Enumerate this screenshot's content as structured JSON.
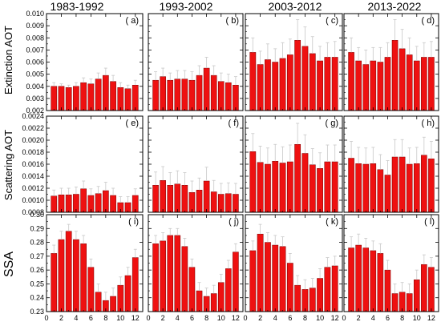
{
  "chart_data": {
    "type": "bar",
    "columns": [
      "1983-1992",
      "1993-2002",
      "2003-2012",
      "2013-2022"
    ],
    "rows": [
      {
        "ylabel": "Extinction AOT",
        "ylim": [
          0.002,
          0.01
        ],
        "yticks": [
          "0.002",
          "0.003",
          "0.004",
          "0.005",
          "0.006",
          "0.007",
          "0.008",
          "0.009",
          "0.010"
        ],
        "panels": [
          {
            "label": "( a)",
            "values": [
              0.004,
              0.004,
              0.0039,
              0.004,
              0.0043,
              0.0042,
              0.0046,
              0.0049,
              0.0044,
              0.0039,
              0.0038,
              0.0041
            ],
            "error": [
              0.0003,
              0.0002,
              0.0002,
              0.0003,
              0.0004,
              0.0004,
              0.0005,
              0.0006,
              0.0005,
              0.0004,
              0.0003,
              0.0004
            ]
          },
          {
            "label": "( b)",
            "values": [
              0.0045,
              0.0048,
              0.0045,
              0.0046,
              0.0046,
              0.0045,
              0.0049,
              0.0055,
              0.0049,
              0.0044,
              0.0043,
              0.0041
            ],
            "error": [
              0.0007,
              0.0007,
              0.0006,
              0.0007,
              0.0007,
              0.0007,
              0.0008,
              0.0009,
              0.0008,
              0.0007,
              0.0007,
              0.0007
            ]
          },
          {
            "label": "( c)",
            "values": [
              0.0068,
              0.0058,
              0.0062,
              0.006,
              0.0063,
              0.0066,
              0.0078,
              0.0073,
              0.0067,
              0.0061,
              0.0064,
              0.0064
            ],
            "error": [
              0.0012,
              0.0011,
              0.0013,
              0.0011,
              0.0013,
              0.0013,
              0.0017,
              0.0016,
              0.0014,
              0.0012,
              0.0012,
              0.0013
            ]
          },
          {
            "label": "( d)",
            "values": [
              0.0068,
              0.0061,
              0.0058,
              0.0061,
              0.006,
              0.0064,
              0.0078,
              0.0071,
              0.0066,
              0.0061,
              0.0064,
              0.0064
            ],
            "error": [
              0.0012,
              0.0011,
              0.0012,
              0.0011,
              0.0012,
              0.0012,
              0.0017,
              0.0016,
              0.0014,
              0.0012,
              0.0012,
              0.0013
            ]
          }
        ]
      },
      {
        "ylabel": "Scattering AOT",
        "ylim": [
          0.0008,
          0.0024
        ],
        "yticks": [
          "0.0008",
          "0.0010",
          "0.0012",
          "0.0014",
          "0.0016",
          "0.0018",
          "0.0020",
          "0.0022",
          "0.0024"
        ],
        "panels": [
          {
            "label": "( e)",
            "values": [
              0.00107,
              0.00109,
              0.00109,
              0.0011,
              0.00119,
              0.00108,
              0.00111,
              0.00116,
              0.00108,
              0.00096,
              0.00096,
              0.00108
            ],
            "error": [
              0.0001,
              0.00011,
              0.00011,
              0.00012,
              0.00013,
              0.00011,
              0.00012,
              0.00014,
              0.00012,
              0.0001,
              0.0001,
              0.00011
            ]
          },
          {
            "label": "( f)",
            "values": [
              0.00125,
              0.00133,
              0.00125,
              0.00127,
              0.00125,
              0.00113,
              0.00117,
              0.00132,
              0.00114,
              0.0011,
              0.00111,
              0.0011
            ],
            "error": [
              0.00022,
              0.00023,
              0.00021,
              0.00022,
              0.00021,
              0.00019,
              0.0002,
              0.00023,
              0.00019,
              0.00018,
              0.00018,
              0.00018
            ]
          },
          {
            "label": "( g)",
            "values": [
              0.00181,
              0.00163,
              0.0016,
              0.00165,
              0.00162,
              0.00164,
              0.00193,
              0.00178,
              0.00159,
              0.00153,
              0.00164,
              0.00164
            ],
            "error": [
              0.0003,
              0.00027,
              0.00027,
              0.00028,
              0.00027,
              0.00028,
              0.00035,
              0.00031,
              0.00027,
              0.00026,
              0.00028,
              0.00028
            ]
          },
          {
            "label": "( h)",
            "values": [
              0.0017,
              0.00161,
              0.0016,
              0.00161,
              0.00151,
              0.00142,
              0.00172,
              0.00172,
              0.0016,
              0.00161,
              0.00175,
              0.00169
            ],
            "error": [
              0.00028,
              0.00027,
              0.00027,
              0.00027,
              0.00025,
              0.00024,
              0.00029,
              0.00029,
              0.00027,
              0.00027,
              0.0003,
              0.00029
            ]
          }
        ]
      },
      {
        "ylabel": "SSA",
        "ylim": [
          0.23,
          0.3
        ],
        "yticks": [
          "0.23",
          "0.24",
          "0.25",
          "0.26",
          "0.27",
          "0.28",
          "0.29",
          "0.30"
        ],
        "panels": [
          {
            "label": "( i)",
            "values": [
              0.272,
              0.282,
              0.288,
              0.282,
              0.279,
              0.262,
              0.244,
              0.238,
              0.241,
              0.249,
              0.256,
              0.269
            ],
            "error": [
              0.006,
              0.006,
              0.005,
              0.006,
              0.006,
              0.006,
              0.006,
              0.006,
              0.006,
              0.006,
              0.006,
              0.006
            ]
          },
          {
            "label": "( j)",
            "values": [
              0.279,
              0.281,
              0.285,
              0.285,
              0.277,
              0.262,
              0.245,
              0.241,
              0.243,
              0.251,
              0.261,
              0.273
            ],
            "error": [
              0.006,
              0.006,
              0.005,
              0.005,
              0.006,
              0.006,
              0.006,
              0.006,
              0.006,
              0.006,
              0.006,
              0.006
            ]
          },
          {
            "label": "( k)",
            "values": [
              0.274,
              0.286,
              0.28,
              0.278,
              0.277,
              0.265,
              0.249,
              0.246,
              0.247,
              0.254,
              0.262,
              0.263
            ],
            "error": [
              0.007,
              0.007,
              0.007,
              0.007,
              0.007,
              0.007,
              0.007,
              0.007,
              0.007,
              0.007,
              0.007,
              0.007
            ]
          },
          {
            "label": "( l)",
            "values": [
              0.276,
              0.278,
              0.276,
              0.274,
              0.272,
              0.26,
              0.243,
              0.244,
              0.243,
              0.253,
              0.264,
              0.262
            ],
            "error": [
              0.008,
              0.008,
              0.007,
              0.007,
              0.007,
              0.007,
              0.007,
              0.007,
              0.007,
              0.007,
              0.007,
              0.007
            ]
          }
        ]
      }
    ],
    "xlim": [
      0,
      13
    ],
    "xticks": [
      "0",
      "2",
      "4",
      "6",
      "8",
      "10",
      "12"
    ],
    "bar_color": "#ee1111",
    "error_color": "#c8c8c8",
    "grid": false
  }
}
